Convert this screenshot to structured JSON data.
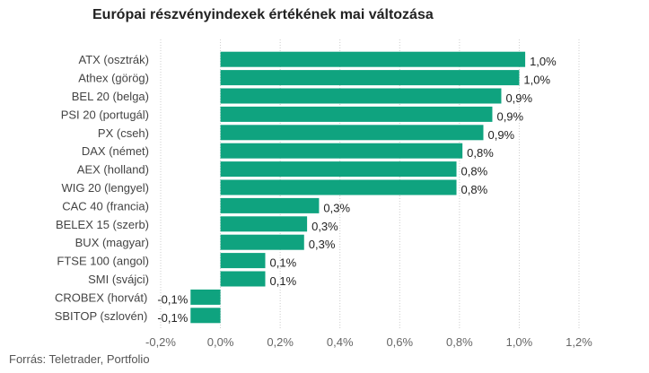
{
  "chart_data": {
    "type": "bar",
    "orientation": "horizontal",
    "title": "Európai részvényindexek értékének mai változása",
    "categories": [
      "ATX (osztrák)",
      "Athex (görög)",
      "BEL 20 (belga)",
      "PSI 20 (portugál)",
      "PX (cseh)",
      "DAX (német)",
      "AEX (holland)",
      "WIG 20 (lengyel)",
      "CAC 40 (francia)",
      "BELEX 15 (szerb)",
      "BUX (magyar)",
      "FTSE 100 (angol)",
      "SMI (svájci)",
      "CROBEX (horvát)",
      "SBITOP (szlovén)"
    ],
    "values": [
      1.02,
      1.0,
      0.94,
      0.91,
      0.88,
      0.81,
      0.79,
      0.79,
      0.33,
      0.29,
      0.28,
      0.15,
      0.15,
      -0.1,
      -0.1
    ],
    "value_labels": [
      "1,0%",
      "1,0%",
      "0,9%",
      "0,9%",
      "0,9%",
      "0,8%",
      "0,8%",
      "0,8%",
      "0,3%",
      "0,3%",
      "0,3%",
      "0,1%",
      "0,1%",
      "-0,1%",
      "-0,1%"
    ],
    "x_ticks": [
      "-0,2%",
      "0,0%",
      "0,2%",
      "0,4%",
      "0,6%",
      "0,8%",
      "1,0%",
      "1,2%"
    ],
    "xlim": [
      -0.2,
      1.2
    ],
    "grid": true,
    "bar_color": "#0fa37f",
    "source": "Forrás: Teletrader, Portfolio"
  }
}
